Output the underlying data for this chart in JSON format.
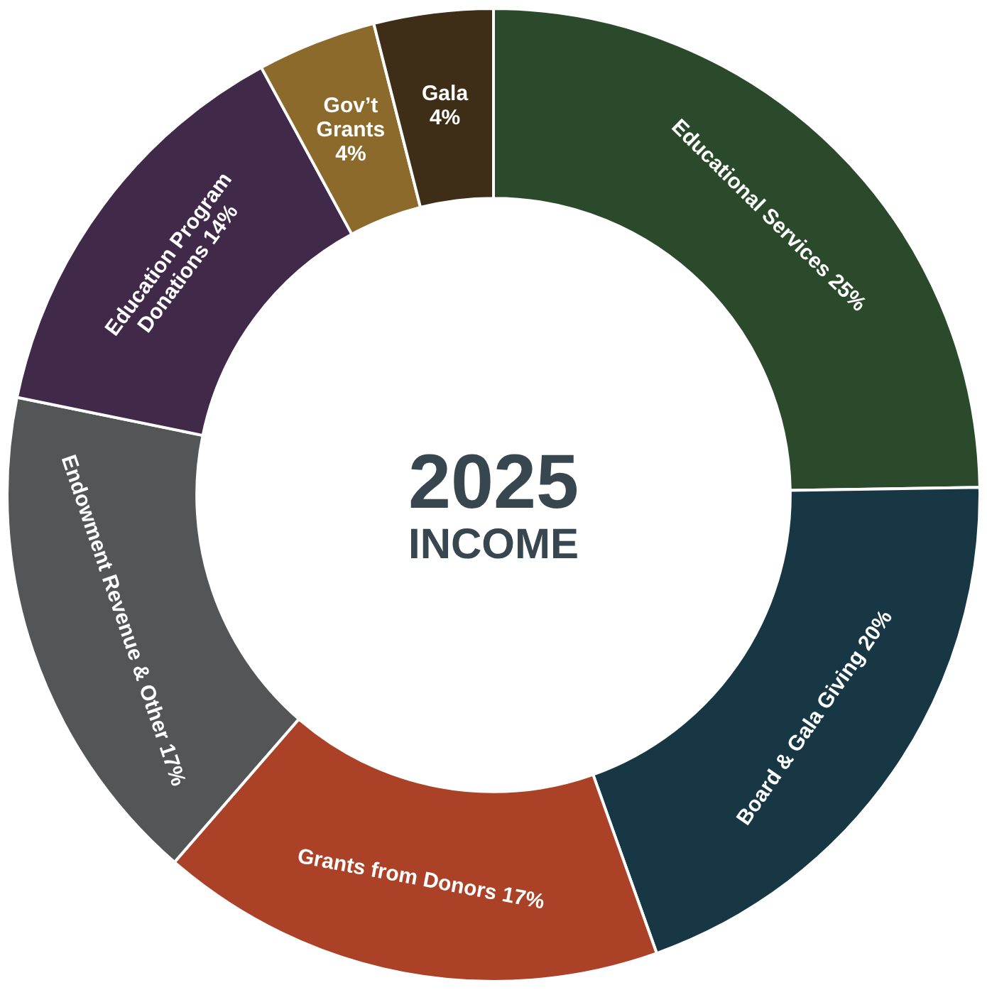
{
  "chart_data": {
    "type": "donut",
    "title": "2025",
    "subtitle": "INCOME",
    "categories": [
      "Educational Services",
      "Board & Gala Giving",
      "Grants from Donors",
      "Endowment Revenue & Other",
      "Education Program Donations",
      "Gov’t Grants",
      "Gala"
    ],
    "values": [
      25,
      20,
      17,
      17,
      14,
      4,
      4
    ],
    "value_labels": [
      "25%",
      "20%",
      "17%",
      "17%",
      "14%",
      "4%",
      "4%"
    ],
    "colors": [
      "#2b4a2b",
      "#173745",
      "#ab4126",
      "#545557",
      "#41294a",
      "#8c6a2c",
      "#3e2e17"
    ],
    "legend": false
  }
}
